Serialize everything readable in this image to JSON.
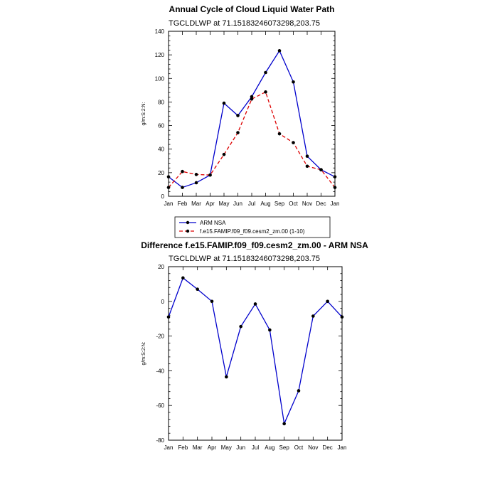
{
  "chart_data": [
    {
      "type": "line",
      "title": "Annual Cycle of Cloud Liquid Water Path",
      "subtitle": "TGCLDLWP at 71.15183246073298,203.75",
      "ylabel": "g/m:S:2:N:",
      "xlabel": "",
      "categories": [
        "Jan",
        "Feb",
        "Mar",
        "Apr",
        "May",
        "Jun",
        "Jul",
        "Aug",
        "Sep",
        "Oct",
        "Nov",
        "Dec",
        "Jan"
      ],
      "ylim": [
        0,
        140
      ],
      "yticks": [
        0,
        20,
        40,
        60,
        80,
        100,
        120,
        140
      ],
      "series": [
        {
          "name": "ARM NSA",
          "color": "#0000cc",
          "dash": "solid",
          "values": [
            16.5,
            7.5,
            11.5,
            18,
            79,
            68.5,
            84.5,
            105,
            123.5,
            97,
            34,
            22.5,
            16.5
          ]
        },
        {
          "name": "f.e15.FAMIP.f09_f09.cesm2_zm.00 (1-10)",
          "color": "#dd0000",
          "dash": "dashed",
          "values": [
            7.5,
            21,
            18.5,
            18,
            35.5,
            54,
            82.5,
            88.5,
            53,
            45.5,
            25.5,
            22.5,
            7.5
          ]
        }
      ],
      "legend": "below"
    },
    {
      "type": "line",
      "title": "Difference f.e15.FAMIP.f09_f09.cesm2_zm.00 - ARM NSA",
      "subtitle": "TGCLDLWP at 71.15183246073298,203.75",
      "ylabel": "g/m:S:2:N:",
      "xlabel": "",
      "categories": [
        "Jan",
        "Feb",
        "Mar",
        "Apr",
        "May",
        "Jun",
        "Jul",
        "Aug",
        "Sep",
        "Oct",
        "Nov",
        "Dec",
        "Jan"
      ],
      "ylim": [
        -80,
        20
      ],
      "yticks": [
        -80,
        -60,
        -40,
        -20,
        0,
        20
      ],
      "series": [
        {
          "color": "#0000cc",
          "dash": "solid",
          "values": [
            -9,
            13.5,
            7,
            0,
            -43.5,
            -14.5,
            -1.5,
            -16.5,
            -70.5,
            -51.5,
            -8.5,
            0,
            -9
          ]
        }
      ]
    }
  ]
}
